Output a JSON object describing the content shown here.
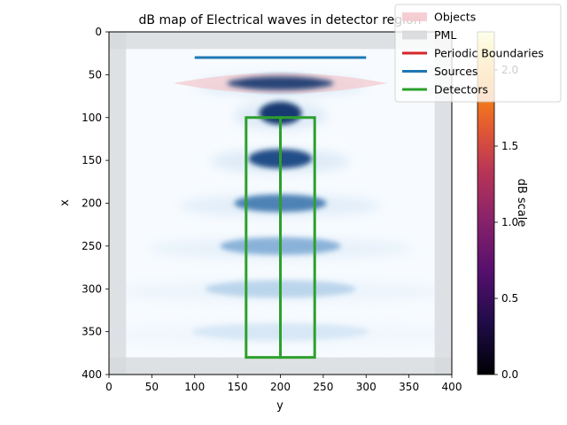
{
  "chart_data": {
    "type": "heatmap",
    "title": "dB map of Electrical waves in detector region",
    "xlabel": "y",
    "ylabel": "x",
    "xlim": [
      0,
      400
    ],
    "ylim": [
      400,
      0
    ],
    "x_ticks": [
      "0",
      "50",
      "100",
      "150",
      "200",
      "250",
      "300",
      "350",
      "400"
    ],
    "y_ticks": [
      "0",
      "50",
      "100",
      "150",
      "200",
      "250",
      "300",
      "350",
      "400"
    ],
    "colorbar": {
      "label": "dB scale",
      "range": [
        0,
        2.25
      ],
      "ticks": [
        "0.0",
        "0.5",
        "1.0",
        "1.5",
        "2.0"
      ],
      "colormap": "inferno"
    },
    "legend": {
      "placement": "top-right",
      "entries": [
        {
          "label": "Objects",
          "color": "#f4c7cc",
          "kind": "patch"
        },
        {
          "label": "PML",
          "color": "#d6d8db",
          "kind": "patch"
        },
        {
          "label": "Periodic Boundaries",
          "color": "#d62728",
          "kind": "line"
        },
        {
          "label": "Sources",
          "color": "#1f77b4",
          "kind": "line"
        },
        {
          "label": "Detectors",
          "color": "#2ca02c",
          "kind": "line"
        }
      ]
    },
    "pml_width": 20,
    "object_lens": {
      "y_from": 75,
      "y_to": 325,
      "x_center": 60,
      "half_thickness": 12
    },
    "source_line": {
      "x": 30,
      "y_from": 100,
      "y_to": 300
    },
    "detectors": [
      {
        "y_from": 160,
        "y_to": 200,
        "x_from": 100,
        "x_to": 380
      },
      {
        "y_from": 200,
        "y_to": 240,
        "x_from": 100,
        "x_to": 380
      }
    ],
    "wave_maxima_x": [
      60,
      95,
      148,
      200,
      250,
      300,
      350
    ]
  }
}
